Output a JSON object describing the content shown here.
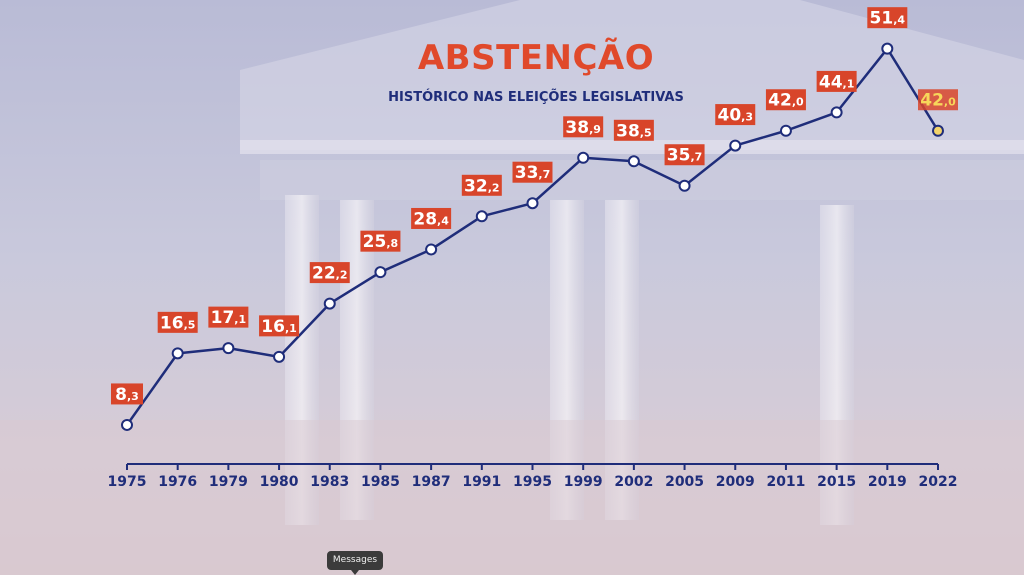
{
  "chart_data": {
    "type": "line",
    "title": "ABSTENÇÃO",
    "subtitle": "HISTÓRICO NAS ELEIÇÕES LEGISLATIVAS",
    "xlabel": "",
    "ylabel": "",
    "categories": [
      "1975",
      "1976",
      "1979",
      "1980",
      "1983",
      "1985",
      "1987",
      "1991",
      "1995",
      "1999",
      "2002",
      "2005",
      "2009",
      "2011",
      "2015",
      "2019",
      "2022"
    ],
    "series": [
      {
        "values": [
          8.3,
          16.5,
          17.1,
          16.1,
          22.2,
          25.8,
          28.4,
          32.2,
          33.7,
          38.9,
          38.5,
          35.7,
          40.3,
          42.0,
          44.1,
          51.4,
          42.0
        ]
      }
    ],
    "labels": [
      {
        "int": "8",
        "dec": ",3"
      },
      {
        "int": "16",
        "dec": ",5"
      },
      {
        "int": "17",
        "dec": ",1"
      },
      {
        "int": "16",
        "dec": ",1"
      },
      {
        "int": "22",
        "dec": ",2"
      },
      {
        "int": "25",
        "dec": ",8"
      },
      {
        "int": "28",
        "dec": ",4"
      },
      {
        "int": "32",
        "dec": ",2"
      },
      {
        "int": "33",
        "dec": ",7"
      },
      {
        "int": "38",
        "dec": ",9"
      },
      {
        "int": "38",
        "dec": ",5"
      },
      {
        "int": "35",
        "dec": ",7"
      },
      {
        "int": "40",
        "dec": ",3"
      },
      {
        "int": "42",
        "dec": ",0"
      },
      {
        "int": "44",
        "dec": ",1"
      },
      {
        "int": "51",
        "dec": ",4"
      },
      {
        "int": "42",
        "dec": ",0"
      }
    ],
    "ylim": [
      0,
      55
    ],
    "grid": false,
    "colors": {
      "line": "#1f2d7a",
      "label_bg": "#d8452a",
      "label_text": "#ffffff",
      "highlight_text": "#f7d65a",
      "highlight_point": "#f2d36b",
      "point_fill": "#ffffff",
      "axis": "#1f2d7a",
      "title": "#e0492b"
    },
    "highlight_index": 16
  },
  "tooltip": {
    "text": "Messages"
  }
}
